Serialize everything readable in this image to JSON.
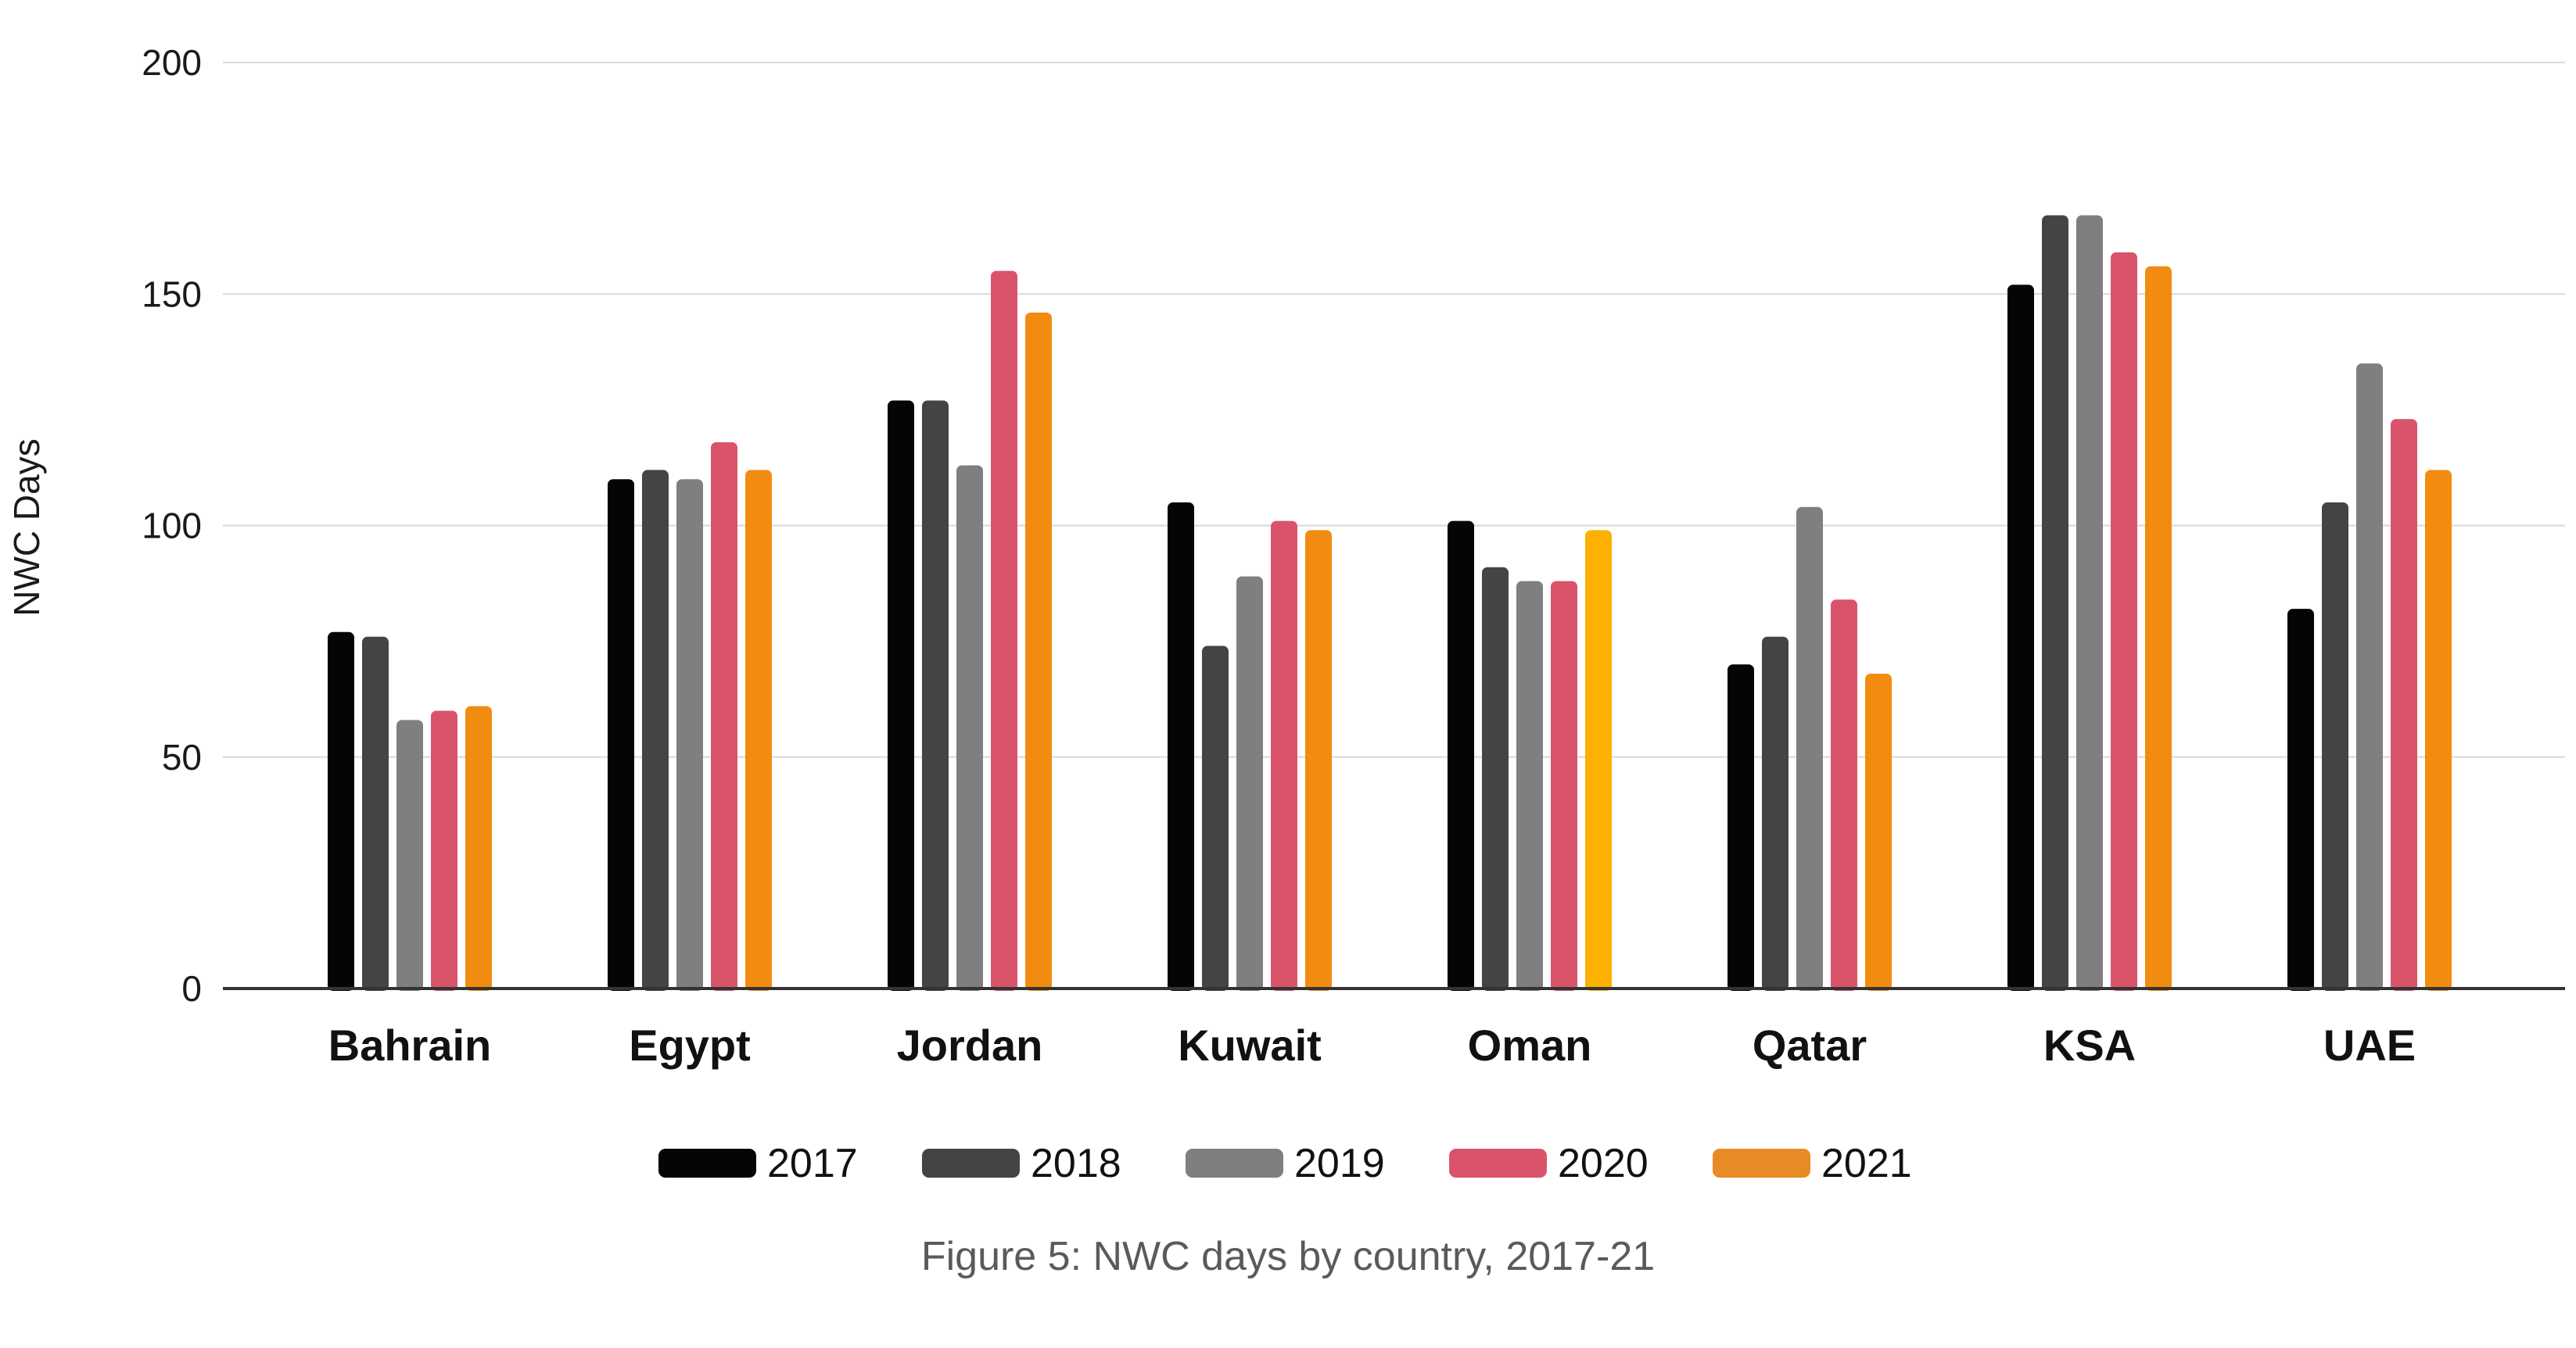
{
  "chart_data": {
    "type": "bar",
    "categories": [
      "Bahrain",
      "Egypt",
      "Jordan",
      "Kuwait",
      "Oman",
      "Qatar",
      "KSA",
      "UAE"
    ],
    "series": [
      {
        "name": "2017",
        "color": "#050505",
        "values": [
          77,
          110,
          127,
          105,
          101,
          70,
          152,
          82
        ]
      },
      {
        "name": "2018",
        "color": "#444444",
        "values": [
          76,
          112,
          127,
          74,
          91,
          76,
          167,
          105
        ]
      },
      {
        "name": "2019",
        "color": "#7f7f7f",
        "values": [
          58,
          110,
          113,
          89,
          88,
          104,
          167,
          135
        ]
      },
      {
        "name": "2020",
        "color": "#d9546a",
        "values": [
          60,
          118,
          155,
          101,
          88,
          84,
          159,
          123
        ]
      },
      {
        "name": "2021",
        "color": "#f28c10",
        "values": [
          61,
          112,
          146,
          99,
          99,
          68,
          156,
          112
        ]
      }
    ],
    "highlight": {
      "category": "Oman",
      "series": "2021",
      "color": "#fcb000"
    },
    "legend_swatch_color_2021": "#e88a26",
    "ylabel": "NWC Days",
    "xlabel": "",
    "title": "",
    "ylim": [
      0,
      200
    ],
    "yticks": [
      "0",
      "50",
      "100",
      "150",
      "200"
    ],
    "grid": true,
    "legend_position": "bottom"
  },
  "caption": "Figure 5: NWC days by country, 2017-21"
}
